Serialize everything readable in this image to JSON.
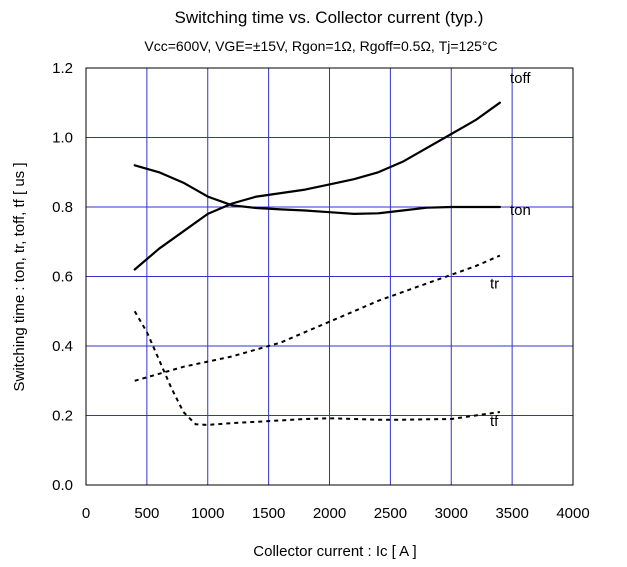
{
  "chart_data": {
    "type": "line",
    "title": "Switching time  vs.  Collector current  (typ.)",
    "subtitle": "Vcc=600V, VGE=±15V, Rgon=1Ω, Rgoff=0.5Ω, Tj=125°C",
    "xlabel": "Collector current  :  Ic  [ A ]",
    "ylabel": "Switching time  :  ton, tr, toff, tf  [ us ]",
    "xlim": [
      0,
      4000
    ],
    "ylim": [
      0,
      1.2
    ],
    "xticks": [
      0,
      500,
      1000,
      1500,
      2000,
      2500,
      3000,
      3500,
      4000
    ],
    "yticks": [
      0.0,
      0.2,
      0.4,
      0.6,
      0.8,
      1.0,
      1.2
    ],
    "xtick_labels": [
      "0",
      "500",
      "1000",
      "1500",
      "2000",
      "2500",
      "3000",
      "3500",
      "4000"
    ],
    "ytick_labels": [
      "0.0",
      "0.2",
      "0.4",
      "0.6",
      "0.8",
      "1.0",
      "1.2"
    ],
    "grid": true,
    "grid_color": "#3333cc",
    "series": [
      {
        "name": "toff",
        "style": "solid",
        "color": "#000000",
        "x": [
          400,
          600,
          800,
          1000,
          1200,
          1400,
          1600,
          1800,
          2000,
          2200,
          2400,
          2600,
          2800,
          3000,
          3200,
          3400
        ],
        "values": [
          0.62,
          0.68,
          0.73,
          0.78,
          0.81,
          0.83,
          0.84,
          0.85,
          0.865,
          0.88,
          0.9,
          0.93,
          0.97,
          1.01,
          1.05,
          1.1
        ]
      },
      {
        "name": "ton",
        "style": "solid",
        "color": "#000000",
        "x": [
          400,
          600,
          800,
          1000,
          1200,
          1400,
          1600,
          1800,
          2000,
          2200,
          2400,
          2600,
          2800,
          3000,
          3200,
          3400
        ],
        "values": [
          0.92,
          0.9,
          0.87,
          0.83,
          0.805,
          0.797,
          0.793,
          0.79,
          0.785,
          0.78,
          0.782,
          0.79,
          0.798,
          0.8,
          0.8,
          0.8
        ]
      },
      {
        "name": "tr",
        "style": "dashed",
        "color": "#000000",
        "x": [
          400,
          600,
          800,
          1000,
          1200,
          1400,
          1600,
          1800,
          2000,
          2200,
          2400,
          2600,
          2800,
          3000,
          3200,
          3400
        ],
        "values": [
          0.3,
          0.32,
          0.34,
          0.355,
          0.37,
          0.39,
          0.41,
          0.44,
          0.47,
          0.5,
          0.53,
          0.555,
          0.58,
          0.605,
          0.63,
          0.66
        ]
      },
      {
        "name": "tf",
        "style": "dashed",
        "color": "#000000",
        "x": [
          400,
          500,
          600,
          700,
          800,
          900,
          1000,
          1200,
          1400,
          1600,
          1800,
          2000,
          2200,
          2400,
          2600,
          2800,
          3000,
          3200,
          3400
        ],
        "values": [
          0.5,
          0.44,
          0.36,
          0.28,
          0.21,
          0.175,
          0.173,
          0.178,
          0.182,
          0.186,
          0.19,
          0.192,
          0.19,
          0.188,
          0.188,
          0.189,
          0.19,
          0.2,
          0.21
        ]
      }
    ]
  }
}
